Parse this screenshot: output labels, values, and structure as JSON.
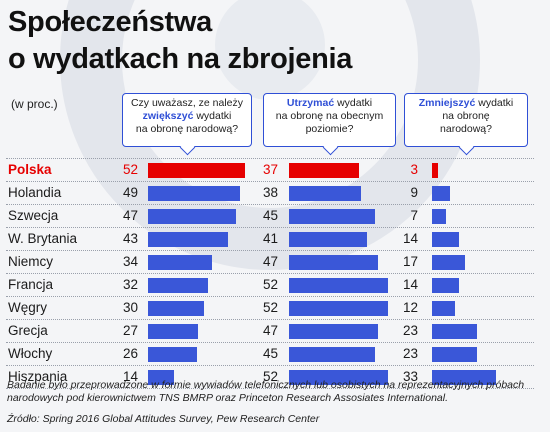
{
  "title_line1": "Społeczeństwa",
  "title_line2": "o wydatkach na zbrojenia",
  "unit": "(w proc.)",
  "questions": {
    "increase": {
      "pre": "Czy uważasz, ze należy",
      "emph": "zwiększyć",
      "post": "wydatki",
      "line3": "na obronę narodową?"
    },
    "maintain": {
      "emph": "Utrzymać",
      "post": "wydatki",
      "line2": "na obronę na obecnym",
      "line3": "poziomie?"
    },
    "decrease": {
      "emph": "Zmniejszyć",
      "post": "wydatki",
      "line2": "na obronę",
      "line3": "narodową?"
    }
  },
  "chart_data": {
    "type": "bar",
    "categories": [
      "Polska",
      "Holandia",
      "Szwecja",
      "W. Brytania",
      "Niemcy",
      "Francja",
      "Węgry",
      "Grecja",
      "Włochy",
      "Hiszpania"
    ],
    "highlight": "Polska",
    "colors": {
      "default": "#3a57d8",
      "highlight": "#e60000"
    },
    "series": [
      {
        "name": "zwiększyć",
        "values": [
          52,
          49,
          47,
          43,
          34,
          32,
          30,
          27,
          26,
          14
        ]
      },
      {
        "name": "Utrzymać",
        "values": [
          37,
          38,
          45,
          41,
          47,
          52,
          52,
          47,
          45,
          52
        ]
      },
      {
        "name": "Zmniejszyć",
        "values": [
          3,
          9,
          7,
          14,
          17,
          14,
          12,
          23,
          23,
          33
        ]
      }
    ]
  },
  "footnote": "Badanie było przeprowadzone w formie wywiadów telefonicznych lub osobistych na reprezentacyjnych próbach narodowych pod kierownictwem TNS BMRP oraz Princeton Research Assosiates International.",
  "source": "Źródło: Spring 2016 Global Attitudes Survey, Pew Research Center"
}
